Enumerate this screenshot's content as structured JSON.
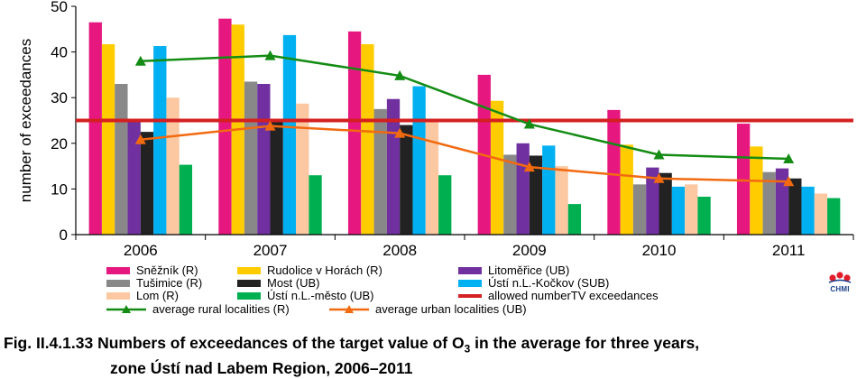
{
  "chart_data": {
    "type": "bar",
    "ylabel": "number of exceedances",
    "ylim": [
      0,
      50
    ],
    "yticks": [
      0,
      10,
      20,
      30,
      40,
      50
    ],
    "categories": [
      "2006",
      "2007",
      "2008",
      "2009",
      "2010",
      "2011"
    ],
    "grid": false,
    "series": [
      {
        "name": "Sněžník (R)",
        "color": "#e6187f",
        "values": [
          46.5,
          47.3,
          44.5,
          35,
          27.3,
          24.3
        ]
      },
      {
        "name": "Rudolice v Horách (R)",
        "color": "#ffcc00",
        "values": [
          41.7,
          46,
          41.7,
          29.3,
          19.7,
          19.3
        ]
      },
      {
        "name": "Tušimice (R)",
        "color": "#888888",
        "values": [
          33,
          33.5,
          27.5,
          17.5,
          11,
          13.7
        ]
      },
      {
        "name": "Litoměřice (UB)",
        "color": "#7030a0",
        "values": [
          25,
          33,
          29.7,
          20,
          14.7,
          14.5
        ]
      },
      {
        "name": "Most (UB)",
        "color": "#222222",
        "values": [
          22.5,
          25,
          24,
          17.3,
          13.5,
          12.3
        ]
      },
      {
        "name": "Ústí n.L.-Kočkov (SUB)",
        "color": "#00b0f0",
        "values": [
          41.3,
          43.7,
          32.5,
          19.5,
          10.5,
          10.5
        ]
      },
      {
        "name": "Lom (R)",
        "color": "#fbc8a2",
        "values": [
          30,
          28.7,
          25,
          15,
          11,
          9
        ]
      },
      {
        "name": "Ústí n.L.-město (UB)",
        "color": "#00b050",
        "values": [
          15.3,
          13,
          13,
          6.7,
          8.3,
          8
        ]
      }
    ],
    "reference_line": {
      "name": "allowed numberTV exceedances",
      "value": 25,
      "color": "#d42020"
    },
    "lines": [
      {
        "name": "average rural localities (R)",
        "color": "#148c14",
        "values": [
          38,
          39.2,
          34.8,
          24.2,
          17.5,
          16.6
        ]
      },
      {
        "name": "average urban localities (UB)",
        "color": "#f26a10",
        "values": [
          20.8,
          23.8,
          22.2,
          14.8,
          12.3,
          11.6
        ]
      }
    ],
    "legend": {
      "placement": "bottom"
    }
  },
  "logo": {
    "text": "CHMI"
  },
  "caption": {
    "prefix": "Fig. II.4.1.33  Numbers of exceedances of the target value of O",
    "subscript": "3",
    "line1_suffix": " in the average for three years,",
    "line2": "zone Ústí nad Labem Region, 2006–2011"
  }
}
